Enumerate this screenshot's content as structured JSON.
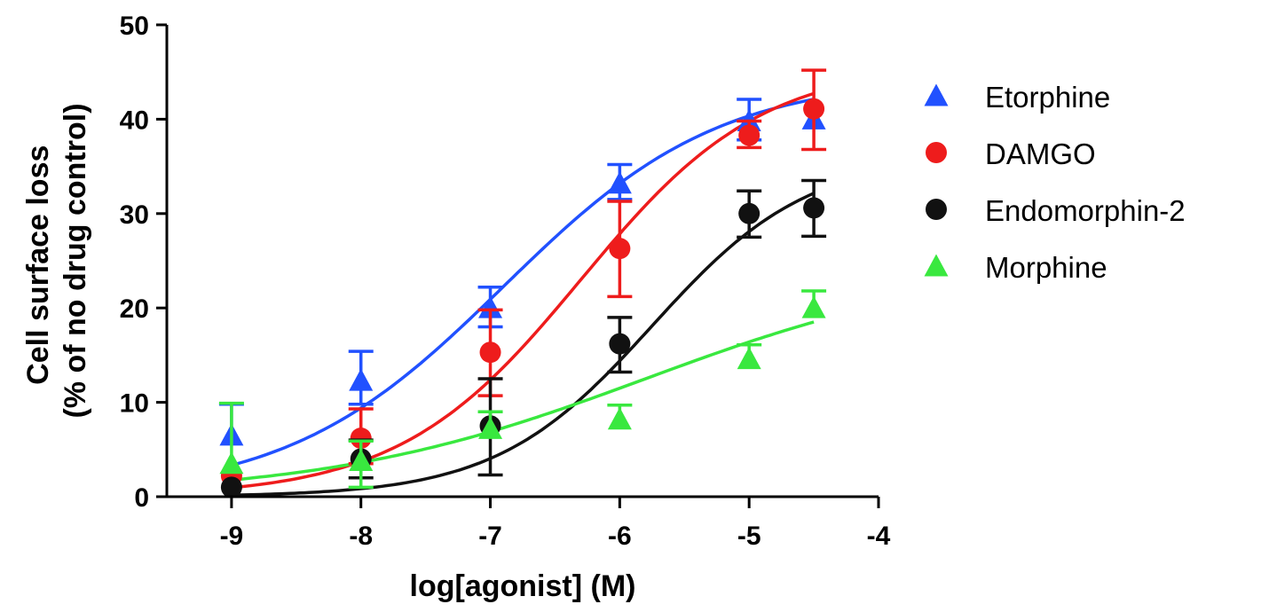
{
  "chart_data": {
    "type": "scatter",
    "xlabel": "log[agonist] (M)",
    "ylabel_lines": [
      "Cell surface loss",
      "(% of no drug control)"
    ],
    "xlim": [
      -9.5,
      -4
    ],
    "ylim": [
      0,
      50
    ],
    "xticks": [
      -9,
      -8,
      -7,
      -6,
      -5,
      -4
    ],
    "yticks": [
      0,
      10,
      20,
      30,
      40,
      50
    ],
    "xtick_labels": [
      "-9",
      "-8",
      "-7",
      "-6",
      "-5",
      "-4"
    ],
    "ytick_labels": [
      "0",
      "10",
      "20",
      "30",
      "40",
      "50"
    ],
    "grid": false,
    "legend_position": "right",
    "series": [
      {
        "name": "Etorphine",
        "marker": "triangle",
        "color": "#2151ff",
        "x": [
          -9,
          -8,
          -7,
          -6,
          -5,
          -4.5
        ],
        "y": [
          6.5,
          12.3,
          20.0,
          33.2,
          39.8,
          40.0
        ],
        "err_upper": [
          9.8,
          15.4,
          22.2,
          35.2,
          42.1,
          40.0
        ],
        "err_lower": [
          6.5,
          9.8,
          18.0,
          31.5,
          37.8,
          40.0
        ],
        "fit": {
          "bottom": 0,
          "top": 44.5,
          "logec50": -6.9,
          "hill": 0.52
        }
      },
      {
        "name": "DAMGO",
        "marker": "circle",
        "color": "#ee1c1c",
        "x": [
          -9,
          -8,
          -7,
          -6,
          -5,
          -4.5
        ],
        "y": [
          2.2,
          6.2,
          15.3,
          26.3,
          38.3,
          41.1
        ],
        "err_upper": [
          2.2,
          9.3,
          19.8,
          31.3,
          39.8,
          45.2
        ],
        "err_lower": [
          2.2,
          3.5,
          10.7,
          21.2,
          37.0,
          36.8
        ],
        "fit": {
          "bottom": 0,
          "top": 46.0,
          "logec50": -6.3,
          "hill": 0.62
        }
      },
      {
        "name": "Endomorphin-2",
        "marker": "circle",
        "color": "#111111",
        "x": [
          -9,
          -8,
          -7,
          -6,
          -5,
          -4.5
        ],
        "y": [
          1.0,
          4.0,
          7.5,
          16.2,
          30.0,
          30.6
        ],
        "err_upper": [
          1.0,
          6.0,
          12.5,
          19.0,
          32.4,
          33.5
        ],
        "err_lower": [
          1.0,
          2.0,
          2.3,
          13.2,
          27.5,
          27.6
        ],
        "fit": {
          "bottom": 0,
          "top": 36.2,
          "logec50": -5.75,
          "hill": 0.72
        }
      },
      {
        "name": "Morphine",
        "marker": "triangle",
        "color": "#39e83f",
        "x": [
          -9,
          -8,
          -7,
          -6,
          -5,
          -4.5
        ],
        "y": [
          3.5,
          3.8,
          7.2,
          8.2,
          14.6,
          20.0
        ],
        "err_upper": [
          9.9,
          5.9,
          9.0,
          9.7,
          16.1,
          21.8
        ],
        "err_lower": [
          3.5,
          1.0,
          7.2,
          8.2,
          14.6,
          20.0
        ],
        "fit": {
          "bottom": 0,
          "top": 25.0,
          "logec50": -5.8,
          "hill": 0.35
        }
      }
    ]
  }
}
